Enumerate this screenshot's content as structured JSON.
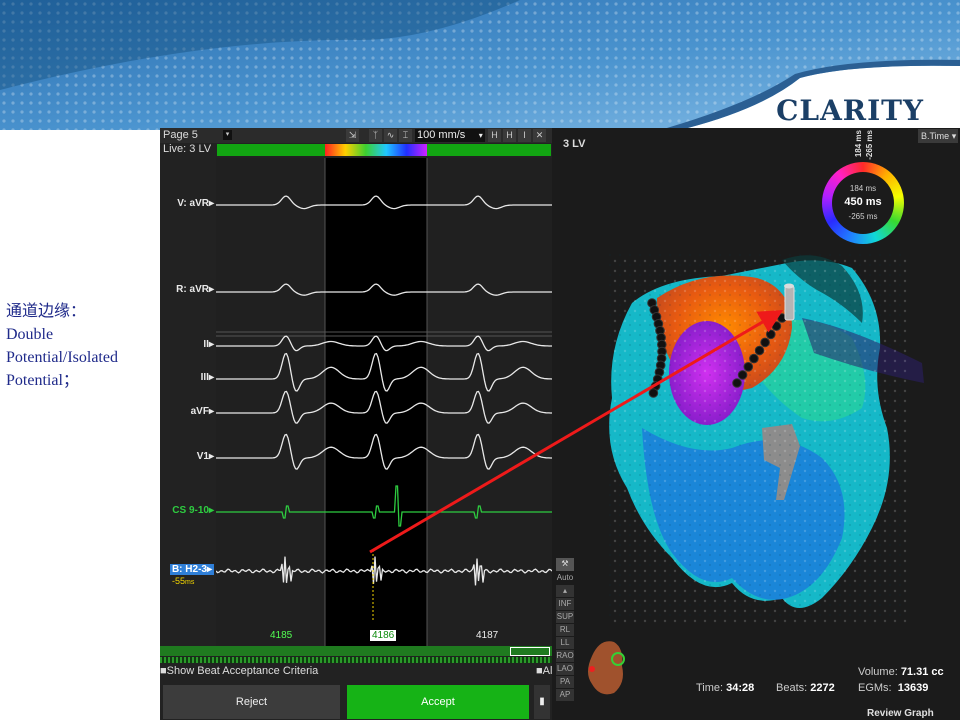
{
  "slide": {
    "brand": "CLARITY",
    "note_line1": "通道边缘：",
    "note_line2": "Double",
    "note_line3": "Potential/Isolated",
    "note_line4": "Potential；"
  },
  "ecg_panel": {
    "page": "Page 5",
    "live": "Live: 3 LV",
    "speed": "100 mm/s",
    "channels": {
      "vavr": "V: aVR",
      "ravr": "R: aVR",
      "ii": "II",
      "iii": "III",
      "avf": "aVF",
      "v1": "V1",
      "cs": "CS 9-10",
      "map": "B: H2-3"
    },
    "map_delay": "-55",
    "map_delay_unit": "ms",
    "beats": [
      "4185",
      "4186",
      "4187"
    ],
    "show_beat_criteria": "Show Beat Acceptance Criteria",
    "all_label": "All",
    "reject_label": "Reject",
    "accept_label": "Accept"
  },
  "map_panel": {
    "title": "3 LV",
    "display_mode": "B.Time",
    "ring": {
      "top_value": "184 ms",
      "center_value": "450 ms",
      "bottom_value": "-265 ms",
      "side_top": "184 ms",
      "side_bottom": "-265 ms"
    },
    "view_buttons": [
      "Auto",
      "INF",
      "SUP",
      "RL",
      "LL",
      "RAO",
      "LAO",
      "PA",
      "AP"
    ],
    "volume_label": "Volume:",
    "volume_value": "71.31 cc",
    "time_label": "Time:",
    "time_value": "34:28",
    "beats_label": "Beats:",
    "beats_value": "2272",
    "egms_label": "EGMs:",
    "egms_value": "13639",
    "review_label": "Review Graph"
  },
  "colors": {
    "banner_blue": "#2f72b0",
    "accept_green": "#16b316",
    "trace_green": "#2ecc40",
    "annotation_red": "#ee1a1a",
    "brand_navy": "#1b3f66"
  }
}
